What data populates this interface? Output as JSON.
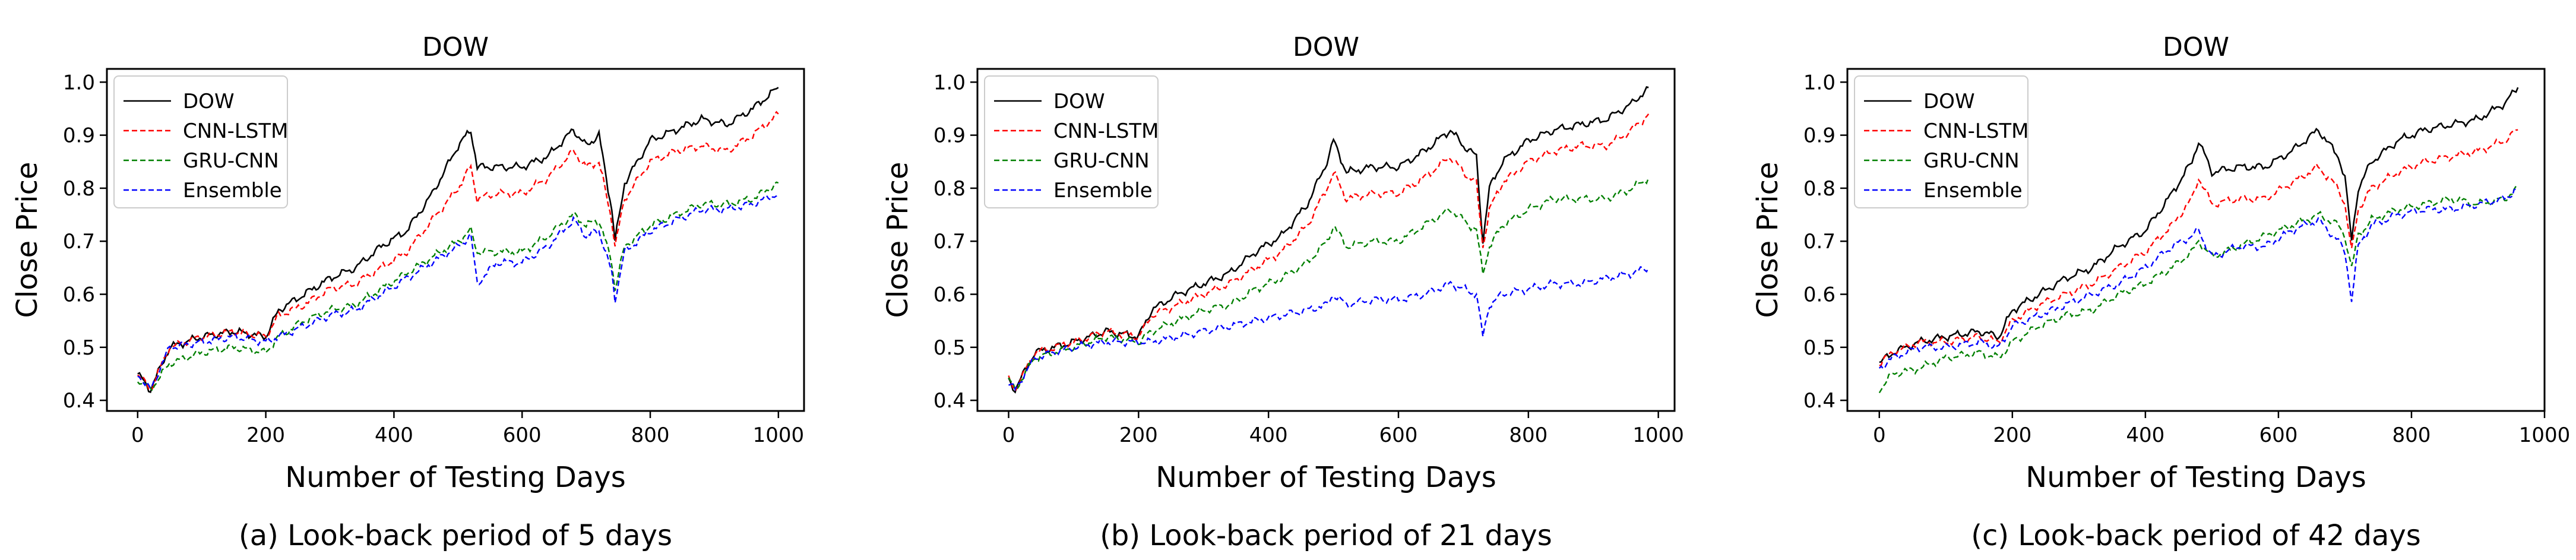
{
  "chart_data": [
    {
      "type": "line",
      "title": "DOW",
      "xlabel": "Number of Testing Days",
      "ylabel": "Close Price",
      "caption": "(a) Look-back period of 5 days",
      "xlim": [
        -48,
        1040
      ],
      "ylim": [
        0.38,
        1.025
      ],
      "xticks": [
        0,
        200,
        400,
        600,
        800,
        1000
      ],
      "yticks": [
        0.4,
        0.5,
        0.6,
        0.7,
        0.8,
        0.9,
        1.0
      ],
      "ytick_labels": [
        "0.4",
        "0.5",
        "0.6",
        "0.7",
        "0.8",
        "0.9",
        "1.0"
      ],
      "legend": "top-left",
      "grid": false,
      "series": [
        {
          "name": "DOW",
          "color": "#000000",
          "dash": "solid",
          "x": [
            0,
            20,
            50,
            100,
            150,
            200,
            220,
            260,
            300,
            340,
            380,
            420,
            460,
            500,
            520,
            530,
            560,
            600,
            640,
            680,
            700,
            720,
            740,
            745,
            760,
            800,
            840,
            880,
            920,
            960,
            1000
          ],
          "y": [
            0.45,
            0.42,
            0.5,
            0.52,
            0.53,
            0.52,
            0.57,
            0.6,
            0.63,
            0.65,
            0.69,
            0.72,
            0.79,
            0.88,
            0.91,
            0.84,
            0.84,
            0.84,
            0.86,
            0.91,
            0.88,
            0.9,
            0.76,
            0.7,
            0.81,
            0.89,
            0.91,
            0.93,
            0.92,
            0.95,
            0.99
          ]
        },
        {
          "name": "CNN-LSTM",
          "color": "#ff0000",
          "dash": "dashed",
          "x": [
            0,
            20,
            50,
            100,
            150,
            200,
            220,
            260,
            300,
            340,
            380,
            420,
            460,
            500,
            520,
            530,
            560,
            600,
            640,
            680,
            700,
            720,
            740,
            745,
            760,
            800,
            840,
            880,
            920,
            960,
            1000
          ],
          "y": [
            0.45,
            0.42,
            0.5,
            0.52,
            0.53,
            0.52,
            0.56,
            0.58,
            0.61,
            0.62,
            0.65,
            0.68,
            0.74,
            0.8,
            0.84,
            0.78,
            0.79,
            0.79,
            0.82,
            0.87,
            0.84,
            0.85,
            0.74,
            0.69,
            0.78,
            0.85,
            0.87,
            0.88,
            0.87,
            0.9,
            0.94
          ]
        },
        {
          "name": "GRU-CNN",
          "color": "#008000",
          "dash": "dashed",
          "x": [
            0,
            20,
            50,
            100,
            150,
            200,
            220,
            260,
            300,
            340,
            380,
            420,
            460,
            500,
            520,
            530,
            560,
            600,
            640,
            680,
            700,
            720,
            740,
            745,
            760,
            800,
            840,
            880,
            920,
            960,
            1000
          ],
          "y": [
            0.44,
            0.42,
            0.47,
            0.49,
            0.5,
            0.49,
            0.52,
            0.55,
            0.57,
            0.58,
            0.61,
            0.64,
            0.67,
            0.7,
            0.72,
            0.68,
            0.68,
            0.68,
            0.71,
            0.75,
            0.73,
            0.74,
            0.66,
            0.61,
            0.69,
            0.73,
            0.75,
            0.77,
            0.77,
            0.78,
            0.81
          ]
        },
        {
          "name": "Ensemble",
          "color": "#0000ff",
          "dash": "dashed",
          "x": [
            0,
            20,
            50,
            100,
            150,
            200,
            220,
            260,
            300,
            340,
            380,
            420,
            460,
            500,
            520,
            530,
            560,
            600,
            640,
            680,
            700,
            720,
            740,
            745,
            760,
            800,
            840,
            880,
            920,
            960,
            1000
          ],
          "y": [
            0.45,
            0.42,
            0.5,
            0.51,
            0.52,
            0.51,
            0.52,
            0.54,
            0.56,
            0.57,
            0.6,
            0.63,
            0.66,
            0.69,
            0.71,
            0.62,
            0.66,
            0.66,
            0.69,
            0.74,
            0.71,
            0.72,
            0.64,
            0.59,
            0.68,
            0.72,
            0.74,
            0.76,
            0.76,
            0.77,
            0.79
          ]
        }
      ]
    },
    {
      "type": "line",
      "title": "DOW",
      "xlabel": "Number of Testing Days",
      "ylabel": "Close Price",
      "caption": "(b) Look-back period of 21 days",
      "xlim": [
        -48,
        1025
      ],
      "ylim": [
        0.38,
        1.025
      ],
      "xticks": [
        0,
        200,
        400,
        600,
        800,
        1000
      ],
      "yticks": [
        0.4,
        0.5,
        0.6,
        0.7,
        0.8,
        0.9,
        1.0
      ],
      "ytick_labels": [
        "0.4",
        "0.5",
        "0.6",
        "0.7",
        "0.8",
        "0.9",
        "1.0"
      ],
      "legend": "top-left",
      "grid": false,
      "series": [
        {
          "name": "DOW",
          "color": "#000000",
          "dash": "solid",
          "x": [
            0,
            10,
            40,
            100,
            150,
            200,
            220,
            260,
            300,
            340,
            380,
            420,
            460,
            490,
            500,
            520,
            560,
            600,
            640,
            680,
            700,
            720,
            730,
            740,
            760,
            800,
            840,
            880,
            920,
            960,
            985
          ],
          "y": [
            0.44,
            0.42,
            0.49,
            0.51,
            0.53,
            0.52,
            0.57,
            0.6,
            0.62,
            0.64,
            0.68,
            0.71,
            0.77,
            0.85,
            0.89,
            0.83,
            0.84,
            0.84,
            0.87,
            0.91,
            0.88,
            0.86,
            0.7,
            0.8,
            0.85,
            0.89,
            0.91,
            0.92,
            0.93,
            0.96,
            0.99
          ]
        },
        {
          "name": "CNN-LSTM",
          "color": "#ff0000",
          "dash": "dashed",
          "x": [
            0,
            10,
            40,
            100,
            150,
            200,
            220,
            260,
            300,
            340,
            380,
            420,
            460,
            490,
            500,
            520,
            560,
            600,
            640,
            680,
            700,
            720,
            730,
            740,
            760,
            800,
            840,
            880,
            920,
            960,
            985
          ],
          "y": [
            0.44,
            0.42,
            0.49,
            0.51,
            0.53,
            0.52,
            0.56,
            0.58,
            0.6,
            0.62,
            0.65,
            0.68,
            0.73,
            0.8,
            0.83,
            0.78,
            0.79,
            0.79,
            0.82,
            0.86,
            0.83,
            0.81,
            0.69,
            0.76,
            0.81,
            0.85,
            0.87,
            0.88,
            0.88,
            0.91,
            0.94
          ]
        },
        {
          "name": "GRU-CNN",
          "color": "#008000",
          "dash": "dashed",
          "x": [
            0,
            10,
            40,
            100,
            150,
            200,
            220,
            260,
            300,
            340,
            380,
            420,
            460,
            490,
            500,
            520,
            560,
            600,
            640,
            680,
            700,
            720,
            730,
            740,
            760,
            800,
            840,
            880,
            920,
            960,
            985
          ],
          "y": [
            0.44,
            0.42,
            0.48,
            0.5,
            0.52,
            0.51,
            0.53,
            0.55,
            0.57,
            0.58,
            0.61,
            0.63,
            0.66,
            0.7,
            0.73,
            0.69,
            0.7,
            0.7,
            0.73,
            0.76,
            0.74,
            0.72,
            0.64,
            0.69,
            0.73,
            0.76,
            0.78,
            0.78,
            0.78,
            0.8,
            0.82
          ]
        },
        {
          "name": "Ensemble",
          "color": "#0000ff",
          "dash": "dashed",
          "x": [
            0,
            10,
            40,
            100,
            150,
            200,
            220,
            260,
            300,
            340,
            380,
            420,
            460,
            490,
            500,
            520,
            560,
            600,
            640,
            680,
            700,
            720,
            730,
            740,
            760,
            800,
            840,
            880,
            920,
            960,
            985
          ],
          "y": [
            0.43,
            0.42,
            0.48,
            0.5,
            0.51,
            0.51,
            0.51,
            0.52,
            0.53,
            0.54,
            0.55,
            0.56,
            0.57,
            0.58,
            0.6,
            0.58,
            0.59,
            0.59,
            0.6,
            0.62,
            0.61,
            0.6,
            0.52,
            0.58,
            0.6,
            0.61,
            0.62,
            0.62,
            0.63,
            0.64,
            0.65
          ]
        }
      ]
    },
    {
      "type": "line",
      "title": "DOW",
      "xlabel": "Number of Testing Days",
      "ylabel": "Close Price",
      "caption": "(c) Look-back period of 42 days",
      "xlim": [
        -48,
        1000
      ],
      "ylim": [
        0.38,
        1.025
      ],
      "xticks": [
        0,
        200,
        400,
        600,
        800,
        1000
      ],
      "yticks": [
        0.4,
        0.5,
        0.6,
        0.7,
        0.8,
        0.9,
        1.0
      ],
      "ytick_labels": [
        "0.4",
        "0.5",
        "0.6",
        "0.7",
        "0.8",
        "0.9",
        "1.0"
      ],
      "legend": "top-left",
      "grid": false,
      "series": [
        {
          "name": "DOW",
          "color": "#000000",
          "dash": "solid",
          "x": [
            0,
            20,
            60,
            100,
            150,
            180,
            200,
            240,
            280,
            320,
            360,
            400,
            440,
            470,
            480,
            500,
            540,
            580,
            620,
            660,
            690,
            700,
            710,
            720,
            740,
            780,
            820,
            860,
            900,
            940,
            960
          ],
          "y": [
            0.47,
            0.49,
            0.51,
            0.52,
            0.53,
            0.52,
            0.57,
            0.6,
            0.63,
            0.65,
            0.69,
            0.72,
            0.79,
            0.85,
            0.89,
            0.83,
            0.84,
            0.84,
            0.87,
            0.91,
            0.86,
            0.82,
            0.7,
            0.8,
            0.85,
            0.89,
            0.91,
            0.92,
            0.93,
            0.96,
            0.99
          ]
        },
        {
          "name": "CNN-LSTM",
          "color": "#ff0000",
          "dash": "dashed",
          "x": [
            0,
            20,
            60,
            100,
            150,
            180,
            200,
            240,
            280,
            320,
            360,
            400,
            440,
            470,
            480,
            500,
            540,
            580,
            620,
            660,
            690,
            700,
            710,
            720,
            740,
            780,
            820,
            860,
            900,
            940,
            960
          ],
          "y": [
            0.47,
            0.49,
            0.51,
            0.51,
            0.52,
            0.51,
            0.55,
            0.58,
            0.6,
            0.62,
            0.65,
            0.68,
            0.73,
            0.78,
            0.82,
            0.77,
            0.78,
            0.78,
            0.81,
            0.84,
            0.8,
            0.77,
            0.68,
            0.76,
            0.8,
            0.83,
            0.85,
            0.86,
            0.87,
            0.89,
            0.91
          ]
        },
        {
          "name": "GRU-CNN",
          "color": "#008000",
          "dash": "dashed",
          "x": [
            0,
            20,
            60,
            100,
            150,
            180,
            200,
            240,
            280,
            320,
            360,
            400,
            440,
            470,
            480,
            500,
            540,
            580,
            620,
            660,
            690,
            700,
            710,
            720,
            740,
            780,
            820,
            860,
            900,
            940,
            960
          ],
          "y": [
            0.42,
            0.45,
            0.46,
            0.48,
            0.49,
            0.48,
            0.51,
            0.54,
            0.56,
            0.57,
            0.6,
            0.62,
            0.65,
            0.68,
            0.7,
            0.67,
            0.69,
            0.71,
            0.73,
            0.75,
            0.73,
            0.71,
            0.65,
            0.71,
            0.74,
            0.76,
            0.77,
            0.78,
            0.77,
            0.78,
            0.8
          ]
        },
        {
          "name": "Ensemble",
          "color": "#0000ff",
          "dash": "dashed",
          "x": [
            0,
            20,
            60,
            100,
            150,
            180,
            200,
            240,
            280,
            320,
            360,
            400,
            440,
            470,
            480,
            500,
            540,
            580,
            620,
            660,
            690,
            700,
            710,
            720,
            740,
            780,
            820,
            860,
            900,
            940,
            960
          ],
          "y": [
            0.46,
            0.48,
            0.5,
            0.5,
            0.51,
            0.5,
            0.54,
            0.56,
            0.58,
            0.6,
            0.62,
            0.65,
            0.69,
            0.71,
            0.72,
            0.67,
            0.69,
            0.69,
            0.72,
            0.74,
            0.7,
            0.68,
            0.59,
            0.69,
            0.73,
            0.75,
            0.76,
            0.76,
            0.77,
            0.78,
            0.8
          ]
        }
      ]
    }
  ]
}
